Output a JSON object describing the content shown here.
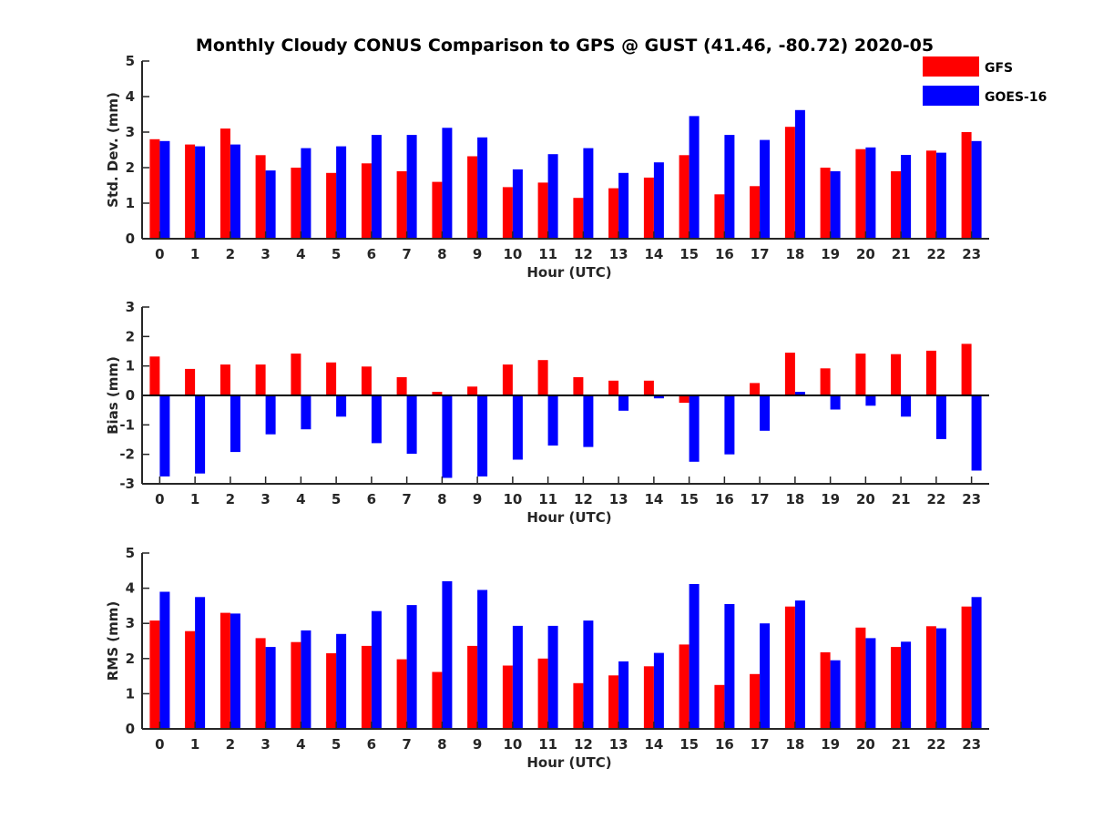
{
  "title": "Monthly Cloudy CONUS Comparison to GPS @ GUST (41.46, -80.72) 2020-05",
  "legend": [
    {
      "name": "GFS",
      "color": "#ff0000"
    },
    {
      "name": "GOES-16",
      "color": "#0000ff"
    }
  ],
  "colors": {
    "gfs": "#ff0000",
    "goes": "#0000ff",
    "axis": "#262626"
  },
  "chart_data": [
    {
      "type": "bar",
      "ylabel": "Std. Dev. (mm)",
      "xlabel": "Hour (UTC)",
      "ylim": [
        0,
        5
      ],
      "yticks": [
        "0",
        "1",
        "2",
        "3",
        "4",
        "5"
      ],
      "categories": [
        "0",
        "1",
        "2",
        "3",
        "4",
        "5",
        "6",
        "7",
        "8",
        "9",
        "10",
        "11",
        "12",
        "13",
        "14",
        "15",
        "16",
        "17",
        "18",
        "19",
        "20",
        "21",
        "22",
        "23"
      ],
      "series": [
        {
          "name": "GFS",
          "values": [
            2.8,
            2.65,
            3.1,
            2.35,
            2.0,
            1.85,
            2.12,
            1.9,
            1.6,
            2.32,
            1.45,
            1.58,
            1.15,
            1.42,
            1.72,
            2.35,
            1.25,
            1.48,
            3.15,
            2.0,
            2.52,
            1.9,
            2.48,
            3.0
          ]
        },
        {
          "name": "GOES-16",
          "values": [
            2.75,
            2.6,
            2.65,
            1.92,
            2.55,
            2.6,
            2.92,
            2.92,
            3.12,
            2.85,
            1.95,
            2.38,
            2.55,
            1.85,
            2.15,
            3.45,
            2.92,
            2.78,
            3.62,
            1.9,
            2.57,
            2.36,
            2.42,
            2.75
          ]
        }
      ]
    },
    {
      "type": "bar",
      "ylabel": "Bias (mm)",
      "xlabel": "Hour (UTC)",
      "ylim": [
        -3,
        3
      ],
      "yticks": [
        "-3",
        "-2",
        "-1",
        "0",
        "1",
        "2",
        "3"
      ],
      "categories": [
        "0",
        "1",
        "2",
        "3",
        "4",
        "5",
        "6",
        "7",
        "8",
        "9",
        "10",
        "11",
        "12",
        "13",
        "14",
        "15",
        "16",
        "17",
        "18",
        "19",
        "20",
        "21",
        "22",
        "23"
      ],
      "series": [
        {
          "name": "GFS",
          "values": [
            1.32,
            0.9,
            1.05,
            1.05,
            1.42,
            1.12,
            0.98,
            0.62,
            0.12,
            0.3,
            1.05,
            1.2,
            0.62,
            0.5,
            0.5,
            -0.25,
            0.0,
            0.42,
            1.45,
            0.92,
            1.42,
            1.4,
            1.52,
            1.75
          ]
        },
        {
          "name": "GOES-16",
          "values": [
            -2.75,
            -2.65,
            -1.92,
            -1.32,
            -1.15,
            -0.72,
            -1.62,
            -1.98,
            -2.8,
            -2.75,
            -2.18,
            -1.7,
            -1.75,
            -0.52,
            -0.1,
            -2.25,
            -2.0,
            -1.2,
            0.12,
            -0.48,
            -0.35,
            -0.72,
            -1.48,
            -2.55
          ]
        }
      ]
    },
    {
      "type": "bar",
      "ylabel": "RMS (mm)",
      "xlabel": "Hour (UTC)",
      "ylim": [
        0,
        5
      ],
      "yticks": [
        "0",
        "1",
        "2",
        "3",
        "4",
        "5"
      ],
      "categories": [
        "0",
        "1",
        "2",
        "3",
        "4",
        "5",
        "6",
        "7",
        "8",
        "9",
        "10",
        "11",
        "12",
        "13",
        "14",
        "15",
        "16",
        "17",
        "18",
        "19",
        "20",
        "21",
        "22",
        "23"
      ],
      "series": [
        {
          "name": "GFS",
          "values": [
            3.08,
            2.78,
            3.3,
            2.58,
            2.47,
            2.15,
            2.36,
            1.98,
            1.62,
            2.36,
            1.8,
            2.0,
            1.3,
            1.52,
            1.78,
            2.4,
            1.25,
            1.56,
            3.48,
            2.18,
            2.88,
            2.33,
            2.92,
            3.48
          ]
        },
        {
          "name": "GOES-16",
          "values": [
            3.9,
            3.75,
            3.28,
            2.33,
            2.8,
            2.7,
            3.35,
            3.52,
            4.2,
            3.95,
            2.93,
            2.93,
            3.08,
            1.92,
            2.16,
            4.12,
            3.55,
            3.0,
            3.65,
            1.95,
            2.58,
            2.48,
            2.86,
            3.75
          ]
        }
      ]
    }
  ]
}
